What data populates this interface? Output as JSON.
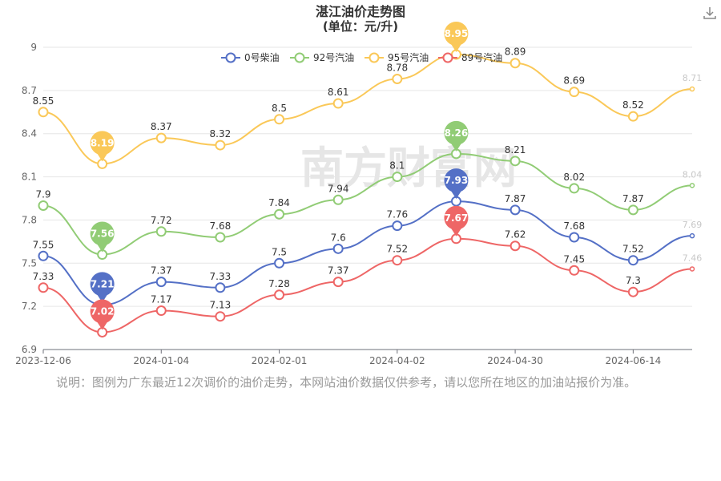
{
  "chart_data": {
    "type": "line",
    "title": "湛江油价走势图",
    "subtitle": "(单位：元/升)",
    "x_tick_labels": [
      "2023-12-06",
      "2024-01-04",
      "2024-02-01",
      "2024-04-02",
      "2024-04-30",
      "2024-06-14"
    ],
    "y_ticks": [
      6.9,
      7.2,
      7.5,
      7.8,
      8.1,
      8.4,
      8.7,
      9
    ],
    "ylim": [
      6.9,
      9.0
    ],
    "grid": true,
    "legend_position": "top",
    "series": [
      {
        "name": "0号柴油",
        "color": "#5470c6",
        "values": [
          7.55,
          7.21,
          7.37,
          7.33,
          7.5,
          7.6,
          7.76,
          7.93,
          7.87,
          7.68,
          7.52,
          7.69
        ],
        "max_label": "7.93",
        "min_label": "7.21"
      },
      {
        "name": "92号汽油",
        "color": "#91cc75",
        "values": [
          7.9,
          7.56,
          7.72,
          7.68,
          7.84,
          7.94,
          8.1,
          8.26,
          8.21,
          8.02,
          7.87,
          8.04
        ],
        "max_label": "8.26",
        "min_label": "7.56"
      },
      {
        "name": "95号汽油",
        "color": "#fac858",
        "values": [
          8.55,
          8.19,
          8.37,
          8.32,
          8.5,
          8.61,
          8.78,
          8.95,
          8.89,
          8.69,
          8.52,
          8.71
        ],
        "max_label": "8.95",
        "min_label": "8.19"
      },
      {
        "name": "89号汽油",
        "color": "#ee6666",
        "values": [
          7.33,
          7.02,
          7.17,
          7.13,
          7.28,
          7.37,
          7.52,
          7.67,
          7.62,
          7.45,
          7.3,
          7.46
        ],
        "max_label": "7.67",
        "min_label": "7.02"
      }
    ]
  },
  "note": "说明：图例为广东最近12次调价的油价走势，本网站油价数据仅供参考，请以您所在地区的加油站报价为准。",
  "watermark": "南方财富网",
  "download_icon": "download-icon"
}
